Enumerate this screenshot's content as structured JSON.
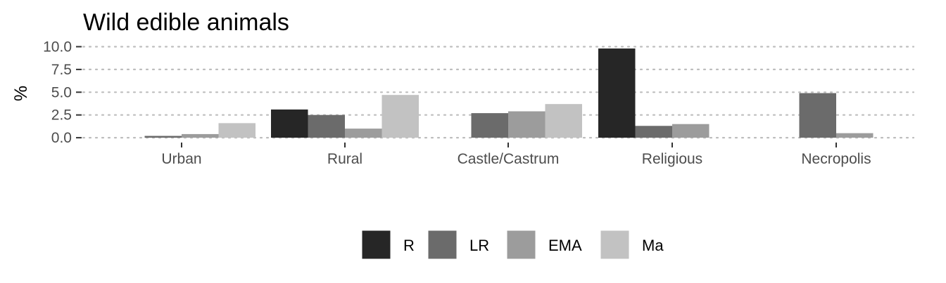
{
  "chart_data": {
    "type": "bar",
    "title": "Wild edible animals",
    "xlabel": "",
    "ylabel": "%",
    "ylim": [
      -0.3,
      10.5
    ],
    "yticks": [
      0,
      2.5,
      5,
      7.5,
      10
    ],
    "ytick_labels": [
      "0.0",
      "2.5",
      "5.0",
      "7.5",
      "10.0"
    ],
    "categories": [
      "Urban",
      "Rural",
      "Castle/Castrum",
      "Religious",
      "Necropolis"
    ],
    "series": [
      {
        "name": "R",
        "color": "#262626",
        "values": [
          null,
          3.1,
          null,
          9.8,
          null
        ]
      },
      {
        "name": "LR",
        "color": "#6b6b6b",
        "values": [
          0.2,
          2.5,
          2.7,
          1.3,
          4.9
        ]
      },
      {
        "name": "EMA",
        "color": "#9c9c9c",
        "values": [
          0.4,
          1.0,
          2.9,
          1.5,
          0.5
        ]
      },
      {
        "name": "Ma",
        "color": "#c2c2c2",
        "values": [
          1.6,
          4.7,
          3.7,
          null,
          null
        ]
      }
    ],
    "grid": "major-y-dotted",
    "legend_position": "bottom"
  }
}
